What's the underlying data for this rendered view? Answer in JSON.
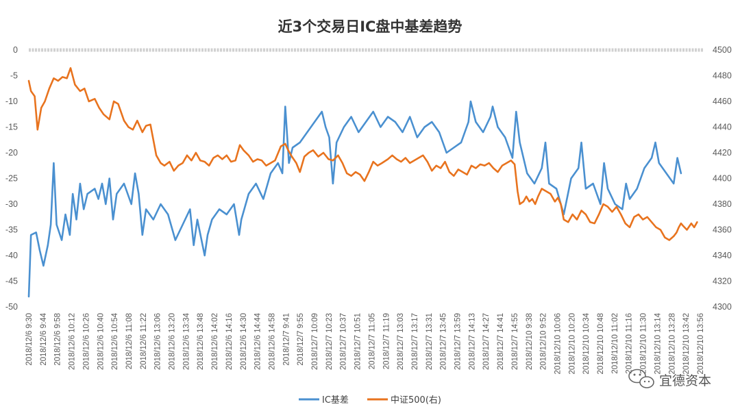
{
  "chart_data": {
    "type": "line",
    "title": "近3个交易日IC盘中基差趋势",
    "y_left": {
      "lim": [
        -50,
        0
      ],
      "ticks": [
        0,
        -5,
        -10,
        -15,
        -20,
        -25,
        -30,
        -35,
        -40,
        -45,
        -50
      ]
    },
    "y_right": {
      "lim": [
        4300,
        4500
      ],
      "ticks": [
        4500,
        4480,
        4460,
        4440,
        4420,
        4400,
        4380,
        4360,
        4340,
        4320,
        4300
      ]
    },
    "x_tick_labels": [
      "2018/12/6 9:30",
      "2018/12/6 9:44",
      "2018/12/6 9:58",
      "2018/12/6 10:12",
      "2018/12/6 10:26",
      "2018/12/6 10:40",
      "2018/12/6 10:54",
      "2018/12/6 11:08",
      "2018/12/6 11:22",
      "2018/12/6 13:06",
      "2018/12/6 13:20",
      "2018/12/6 13:34",
      "2018/12/6 13:48",
      "2018/12/6 14:02",
      "2018/12/6 14:16",
      "2018/12/6 14:30",
      "2018/12/6 14:44",
      "2018/12/6 14:58",
      "2018/12/7 9:41",
      "2018/12/7 9:55",
      "2018/12/7 10:09",
      "2018/12/7 10:23",
      "2018/12/7 10:37",
      "2018/12/7 10:51",
      "2018/12/7 11:05",
      "2018/12/7 11:19",
      "2018/12/7 13:03",
      "2018/12/7 13:17",
      "2018/12/7 13:31",
      "2018/12/7 13:45",
      "2018/12/7 13:59",
      "2018/12/7 14:13",
      "2018/12/7 14:27",
      "2018/12/7 14:41",
      "2018/12/7 14:55",
      "2018/12/10 9:38",
      "2018/12/10 9:52",
      "2018/12/10 10:06",
      "2018/12/10 10:20",
      "2018/12/10 10:34",
      "2018/12/10 10:48",
      "2018/12/10 11:02",
      "2018/12/10 11:16",
      "2018/12/10 11:30",
      "2018/12/10 13:14",
      "2018/12/10 13:28",
      "2018/12/10 13:42",
      "2018/12/10 13:56"
    ],
    "series": [
      {
        "name": "IC基差",
        "axis": "left",
        "color": "#4A90D0",
        "anchors": [
          [
            0,
            -48
          ],
          [
            0.3,
            -36
          ],
          [
            1,
            -35.5
          ],
          [
            1.5,
            -39
          ],
          [
            2,
            -42
          ],
          [
            2.6,
            -38
          ],
          [
            3,
            -34
          ],
          [
            3.4,
            -22
          ],
          [
            3.8,
            -34
          ],
          [
            4.5,
            -37
          ],
          [
            5,
            -32
          ],
          [
            5.6,
            -36
          ],
          [
            6,
            -28
          ],
          [
            6.5,
            -33
          ],
          [
            7,
            -26
          ],
          [
            7.5,
            -31
          ],
          [
            8,
            -28
          ],
          [
            9,
            -27
          ],
          [
            9.5,
            -29
          ],
          [
            10,
            -26
          ],
          [
            10.5,
            -30
          ],
          [
            11,
            -25
          ],
          [
            11.5,
            -33
          ],
          [
            12,
            -28
          ],
          [
            13,
            -26
          ],
          [
            14,
            -30
          ],
          [
            14.5,
            -24
          ],
          [
            15,
            -28
          ],
          [
            15.5,
            -36
          ],
          [
            16,
            -31
          ],
          [
            17,
            -33
          ],
          [
            18,
            -30
          ],
          [
            19,
            -32
          ],
          [
            20,
            -37
          ],
          [
            21,
            -34
          ],
          [
            22,
            -31
          ],
          [
            22.5,
            -38
          ],
          [
            23,
            -33
          ],
          [
            24,
            -40
          ],
          [
            24.4,
            -36
          ],
          [
            25,
            -33
          ],
          [
            26,
            -31
          ],
          [
            27,
            -32
          ],
          [
            28,
            -30
          ],
          [
            28.7,
            -36
          ],
          [
            29,
            -33
          ],
          [
            30,
            -28
          ],
          [
            31,
            -26
          ],
          [
            32,
            -29
          ],
          [
            33,
            -24
          ],
          [
            34,
            -22
          ],
          [
            34.6,
            -24
          ],
          [
            35,
            -11
          ],
          [
            35.5,
            -22
          ],
          [
            36,
            -19
          ],
          [
            37,
            -18
          ],
          [
            38,
            -16
          ],
          [
            39,
            -14
          ],
          [
            40,
            -12
          ],
          [
            40.5,
            -15
          ],
          [
            41,
            -17
          ],
          [
            41.5,
            -26
          ],
          [
            42,
            -18
          ],
          [
            43,
            -15
          ],
          [
            44,
            -13
          ],
          [
            45,
            -16
          ],
          [
            46,
            -14
          ],
          [
            47,
            -12
          ],
          [
            48,
            -15
          ],
          [
            49,
            -13
          ],
          [
            50,
            -14
          ],
          [
            51,
            -16
          ],
          [
            52,
            -13
          ],
          [
            53,
            -17
          ],
          [
            54,
            -15
          ],
          [
            55,
            -14
          ],
          [
            56,
            -16
          ],
          [
            57,
            -20
          ],
          [
            58,
            -19
          ],
          [
            59,
            -18
          ],
          [
            60,
            -14
          ],
          [
            60.3,
            -10
          ],
          [
            61,
            -14
          ],
          [
            62,
            -16
          ],
          [
            63,
            -13
          ],
          [
            63.3,
            -11
          ],
          [
            64,
            -15
          ],
          [
            65,
            -17
          ],
          [
            66,
            -21
          ],
          [
            66.5,
            -12
          ],
          [
            67,
            -18
          ],
          [
            68,
            -24
          ],
          [
            69,
            -26
          ],
          [
            70,
            -23
          ],
          [
            70.5,
            -18
          ],
          [
            71,
            -26
          ],
          [
            72,
            -27
          ],
          [
            73,
            -32
          ],
          [
            74,
            -25
          ],
          [
            75,
            -23
          ],
          [
            75.4,
            -18
          ],
          [
            76,
            -27
          ],
          [
            77,
            -26
          ],
          [
            78,
            -30
          ],
          [
            78.5,
            -22
          ],
          [
            79,
            -27
          ],
          [
            80,
            -30
          ],
          [
            81,
            -31
          ],
          [
            81.5,
            -26
          ],
          [
            82,
            -29
          ],
          [
            83,
            -27
          ],
          [
            84,
            -23
          ],
          [
            85,
            -21
          ],
          [
            85.5,
            -18
          ],
          [
            86,
            -22
          ],
          [
            87,
            -24
          ],
          [
            88,
            -26
          ],
          [
            88.5,
            -21
          ],
          [
            89,
            -24
          ]
        ]
      },
      {
        "name": "中证500(右)",
        "axis": "right",
        "color": "#E8731E",
        "anchors": [
          [
            0,
            4476
          ],
          [
            0.3,
            4468
          ],
          [
            0.8,
            4464
          ],
          [
            1.2,
            4438
          ],
          [
            1.7,
            4455
          ],
          [
            2.2,
            4460
          ],
          [
            2.8,
            4470
          ],
          [
            3.4,
            4478
          ],
          [
            4,
            4476
          ],
          [
            4.6,
            4479
          ],
          [
            5.2,
            4478
          ],
          [
            5.7,
            4486
          ],
          [
            6.3,
            4473
          ],
          [
            7,
            4468
          ],
          [
            7.6,
            4470
          ],
          [
            8.2,
            4460
          ],
          [
            9,
            4462
          ],
          [
            9.6,
            4455
          ],
          [
            10.2,
            4450
          ],
          [
            11,
            4446
          ],
          [
            11.6,
            4460
          ],
          [
            12.2,
            4458
          ],
          [
            13,
            4445
          ],
          [
            13.6,
            4440
          ],
          [
            14.2,
            4438
          ],
          [
            14.8,
            4445
          ],
          [
            15.5,
            4436
          ],
          [
            16,
            4441
          ],
          [
            16.6,
            4442
          ],
          [
            17.4,
            4418
          ],
          [
            18,
            4412
          ],
          [
            18.5,
            4410
          ],
          [
            19.2,
            4413
          ],
          [
            19.8,
            4406
          ],
          [
            20.4,
            4410
          ],
          [
            21,
            4412
          ],
          [
            21.6,
            4418
          ],
          [
            22.2,
            4414
          ],
          [
            22.8,
            4420
          ],
          [
            23.4,
            4414
          ],
          [
            24,
            4413
          ],
          [
            24.6,
            4410
          ],
          [
            25.2,
            4416
          ],
          [
            25.8,
            4418
          ],
          [
            26.4,
            4415
          ],
          [
            27,
            4418
          ],
          [
            27.6,
            4413
          ],
          [
            28.2,
            4414
          ],
          [
            28.8,
            4426
          ],
          [
            29.3,
            4422
          ],
          [
            30,
            4418
          ],
          [
            30.6,
            4413
          ],
          [
            31.2,
            4415
          ],
          [
            31.8,
            4414
          ],
          [
            32.4,
            4410
          ],
          [
            33,
            4412
          ],
          [
            33.6,
            4414
          ],
          [
            34.4,
            4425
          ],
          [
            35,
            4427
          ],
          [
            35.4,
            4422
          ],
          [
            35.9,
            4417
          ],
          [
            36.5,
            4412
          ],
          [
            37,
            4405
          ],
          [
            37.6,
            4417
          ],
          [
            38.2,
            4420
          ],
          [
            38.8,
            4422
          ],
          [
            39.5,
            4417
          ],
          [
            40.2,
            4420
          ],
          [
            40.9,
            4415
          ],
          [
            41.5,
            4414
          ],
          [
            42.2,
            4418
          ],
          [
            42.8,
            4412
          ],
          [
            43.4,
            4404
          ],
          [
            44,
            4402
          ],
          [
            44.6,
            4405
          ],
          [
            45.2,
            4403
          ],
          [
            45.8,
            4398
          ],
          [
            46.4,
            4405
          ],
          [
            47,
            4413
          ],
          [
            47.6,
            4410
          ],
          [
            48.2,
            4412
          ],
          [
            49,
            4415
          ],
          [
            49.6,
            4418
          ],
          [
            50.2,
            4415
          ],
          [
            50.8,
            4413
          ],
          [
            51.4,
            4416
          ],
          [
            52,
            4412
          ],
          [
            52.6,
            4414
          ],
          [
            53.2,
            4416
          ],
          [
            53.8,
            4418
          ],
          [
            54.4,
            4413
          ],
          [
            55,
            4406
          ],
          [
            55.6,
            4410
          ],
          [
            56.2,
            4408
          ],
          [
            56.8,
            4413
          ],
          [
            57.4,
            4405
          ],
          [
            58,
            4402
          ],
          [
            58.6,
            4407
          ],
          [
            59.2,
            4405
          ],
          [
            59.8,
            4403
          ],
          [
            60.4,
            4410
          ],
          [
            61,
            4408
          ],
          [
            61.6,
            4411
          ],
          [
            62.2,
            4410
          ],
          [
            62.8,
            4412
          ],
          [
            63.4,
            4408
          ],
          [
            64,
            4405
          ],
          [
            64.6,
            4410
          ],
          [
            65.2,
            4412
          ],
          [
            65.8,
            4414
          ],
          [
            66.3,
            4411
          ],
          [
            66.7,
            4390
          ],
          [
            67,
            4380
          ],
          [
            67.5,
            4382
          ],
          [
            67.9,
            4386
          ],
          [
            68.3,
            4382
          ],
          [
            68.7,
            4384
          ],
          [
            69.1,
            4380
          ],
          [
            69.5,
            4386
          ],
          [
            70,
            4392
          ],
          [
            70.6,
            4390
          ],
          [
            71.2,
            4388
          ],
          [
            71.8,
            4382
          ],
          [
            72.2,
            4385
          ],
          [
            72.6,
            4380
          ],
          [
            73,
            4368
          ],
          [
            73.6,
            4366
          ],
          [
            74.2,
            4372
          ],
          [
            74.8,
            4368
          ],
          [
            75.4,
            4375
          ],
          [
            76,
            4372
          ],
          [
            76.6,
            4366
          ],
          [
            77.2,
            4365
          ],
          [
            77.8,
            4372
          ],
          [
            78.4,
            4380
          ],
          [
            79,
            4378
          ],
          [
            79.6,
            4374
          ],
          [
            80.2,
            4378
          ],
          [
            80.8,
            4372
          ],
          [
            81.4,
            4365
          ],
          [
            82,
            4362
          ],
          [
            82.6,
            4370
          ],
          [
            83.2,
            4372
          ],
          [
            83.8,
            4368
          ],
          [
            84.4,
            4370
          ],
          [
            85,
            4366
          ],
          [
            85.6,
            4362
          ],
          [
            86.2,
            4360
          ],
          [
            86.8,
            4354
          ],
          [
            87.4,
            4352
          ],
          [
            88,
            4355
          ],
          [
            88.4,
            4358
          ],
          [
            88.7,
            4362
          ],
          [
            89,
            4365
          ],
          [
            89.3,
            4363
          ],
          [
            89.8,
            4360
          ],
          [
            90.4,
            4365
          ],
          [
            90.8,
            4362
          ],
          [
            91.2,
            4366
          ]
        ]
      }
    ]
  },
  "watermark": {
    "brand": "宜德资本"
  }
}
